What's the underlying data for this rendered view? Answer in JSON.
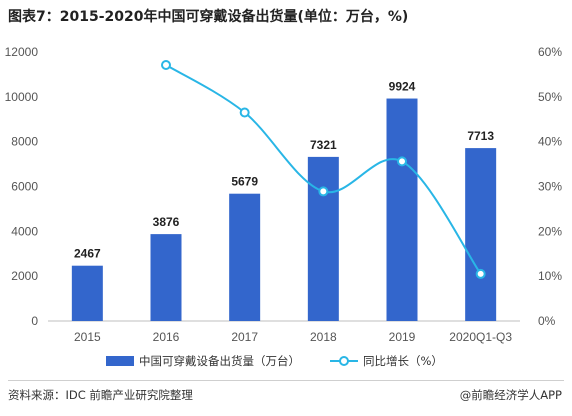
{
  "title": "图表7：2015-2020年中国可穿戴设备出货量(单位：万台，%)",
  "source": "资料来源：IDC 前瞻产业研究院整理",
  "credit": "@前瞻经济学人APP",
  "colors": {
    "bar": "#3366cc",
    "line": "#29b6e6",
    "grid": "#d9d9d9",
    "axis": "#bfbfbf"
  },
  "chart_data": {
    "type": "bar",
    "categories": [
      "2015",
      "2016",
      "2017",
      "2018",
      "2019",
      "2020Q1-Q3"
    ],
    "series": [
      {
        "name": "中国可穿戴设备出货量（万台）",
        "type": "bar",
        "axis": "left",
        "values": [
          2467,
          3876,
          5679,
          7321,
          9924,
          7713
        ]
      },
      {
        "name": "同比增长（%）",
        "type": "line",
        "axis": "right",
        "values": [
          null,
          57.1,
          46.5,
          28.9,
          35.6,
          10.5
        ]
      }
    ],
    "y_left": {
      "min": 0,
      "max": 12000,
      "ticks": [
        0,
        2000,
        4000,
        6000,
        8000,
        10000,
        12000
      ]
    },
    "y_right": {
      "min": 0,
      "max": 60,
      "ticks": [
        "0%",
        "10%",
        "20%",
        "30%",
        "40%",
        "50%",
        "60%"
      ]
    },
    "grid": false,
    "legend": "bottom"
  }
}
